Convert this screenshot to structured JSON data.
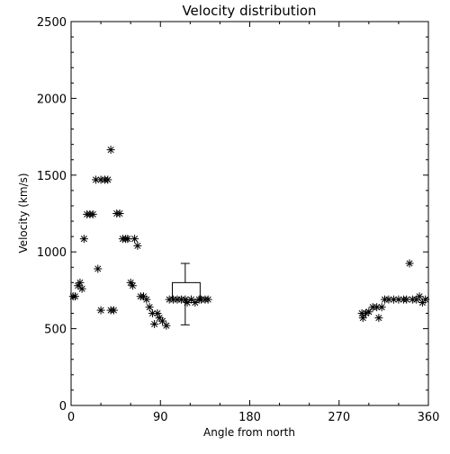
{
  "chart_data": {
    "type": "scatter",
    "title": "Velocity distribution",
    "xlabel": "Angle from north",
    "ylabel": "Velocity (km/s)",
    "xlim": [
      0,
      360
    ],
    "ylim": [
      0,
      2500
    ],
    "xticks": [
      0,
      90,
      180,
      270,
      360
    ],
    "yticks": [
      0,
      500,
      1000,
      1500,
      2000,
      2500
    ],
    "grid": false,
    "marker": "asterisk",
    "series": [
      {
        "points": [
          [
            2,
            710
          ],
          [
            4,
            710
          ],
          [
            7,
            780
          ],
          [
            9,
            800
          ],
          [
            11,
            760
          ],
          [
            13,
            1085
          ],
          [
            16,
            1245
          ],
          [
            19,
            1245
          ],
          [
            22,
            1245
          ],
          [
            25,
            1470
          ],
          [
            27,
            890
          ],
          [
            30,
            1470
          ],
          [
            30,
            620
          ],
          [
            34,
            1470
          ],
          [
            37,
            1470
          ],
          [
            40,
            1665
          ],
          [
            40,
            620
          ],
          [
            43,
            620
          ],
          [
            46,
            1250
          ],
          [
            49,
            1250
          ],
          [
            52,
            1085
          ],
          [
            55,
            1085
          ],
          [
            57,
            1085
          ],
          [
            60,
            800
          ],
          [
            62,
            780
          ],
          [
            64,
            1085
          ],
          [
            67,
            1040
          ],
          [
            70,
            710
          ],
          [
            73,
            710
          ],
          [
            76,
            690
          ],
          [
            79,
            640
          ],
          [
            82,
            600
          ],
          [
            84,
            530
          ],
          [
            87,
            600
          ],
          [
            89,
            570
          ],
          [
            92,
            550
          ],
          [
            96,
            520
          ],
          [
            99,
            690
          ],
          [
            103,
            690
          ],
          [
            107,
            690
          ],
          [
            111,
            690
          ],
          [
            115,
            690
          ],
          [
            117,
            670
          ],
          [
            121,
            690
          ],
          [
            125,
            670
          ],
          [
            129,
            690
          ],
          [
            131,
            690
          ],
          [
            135,
            690
          ],
          [
            138,
            690
          ],
          [
            293,
            600
          ],
          [
            294,
            570
          ],
          [
            297,
            600
          ],
          [
            300,
            610
          ],
          [
            304,
            640
          ],
          [
            308,
            640
          ],
          [
            310,
            570
          ],
          [
            313,
            640
          ],
          [
            316,
            690
          ],
          [
            320,
            690
          ],
          [
            325,
            690
          ],
          [
            330,
            690
          ],
          [
            335,
            690
          ],
          [
            338,
            690
          ],
          [
            341,
            925
          ],
          [
            344,
            690
          ],
          [
            348,
            690
          ],
          [
            351,
            710
          ],
          [
            354,
            670
          ],
          [
            357,
            690
          ]
        ]
      }
    ],
    "boxplot": {
      "x": 115,
      "x_range": [
        102,
        130
      ],
      "whisker_low": 525,
      "q1": 690,
      "q3": 800,
      "whisker_high": 925
    }
  }
}
